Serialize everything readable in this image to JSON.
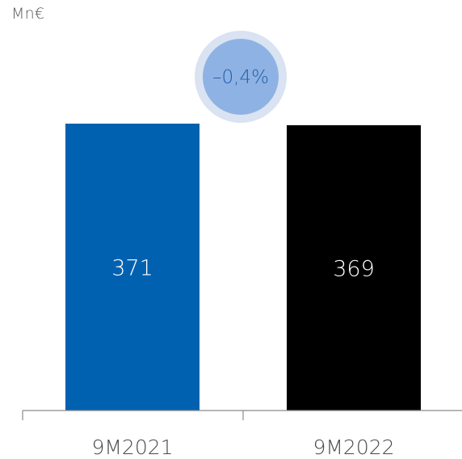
{
  "chart_data": {
    "type": "bar",
    "unit": "Mn€",
    "categories": [
      "9M2021",
      "9M2022"
    ],
    "values": [
      371,
      369
    ],
    "value_labels": [
      "371",
      "369"
    ],
    "colors": [
      "#0061b0",
      "#000000"
    ],
    "ylim": [
      0,
      371
    ],
    "change": {
      "label": "–0,4%",
      "color": "#1f5fa8",
      "bubble_fill": "#8fb2e4",
      "bubble_ring": "#d9e3f1"
    },
    "grid": false,
    "legend": "none"
  }
}
